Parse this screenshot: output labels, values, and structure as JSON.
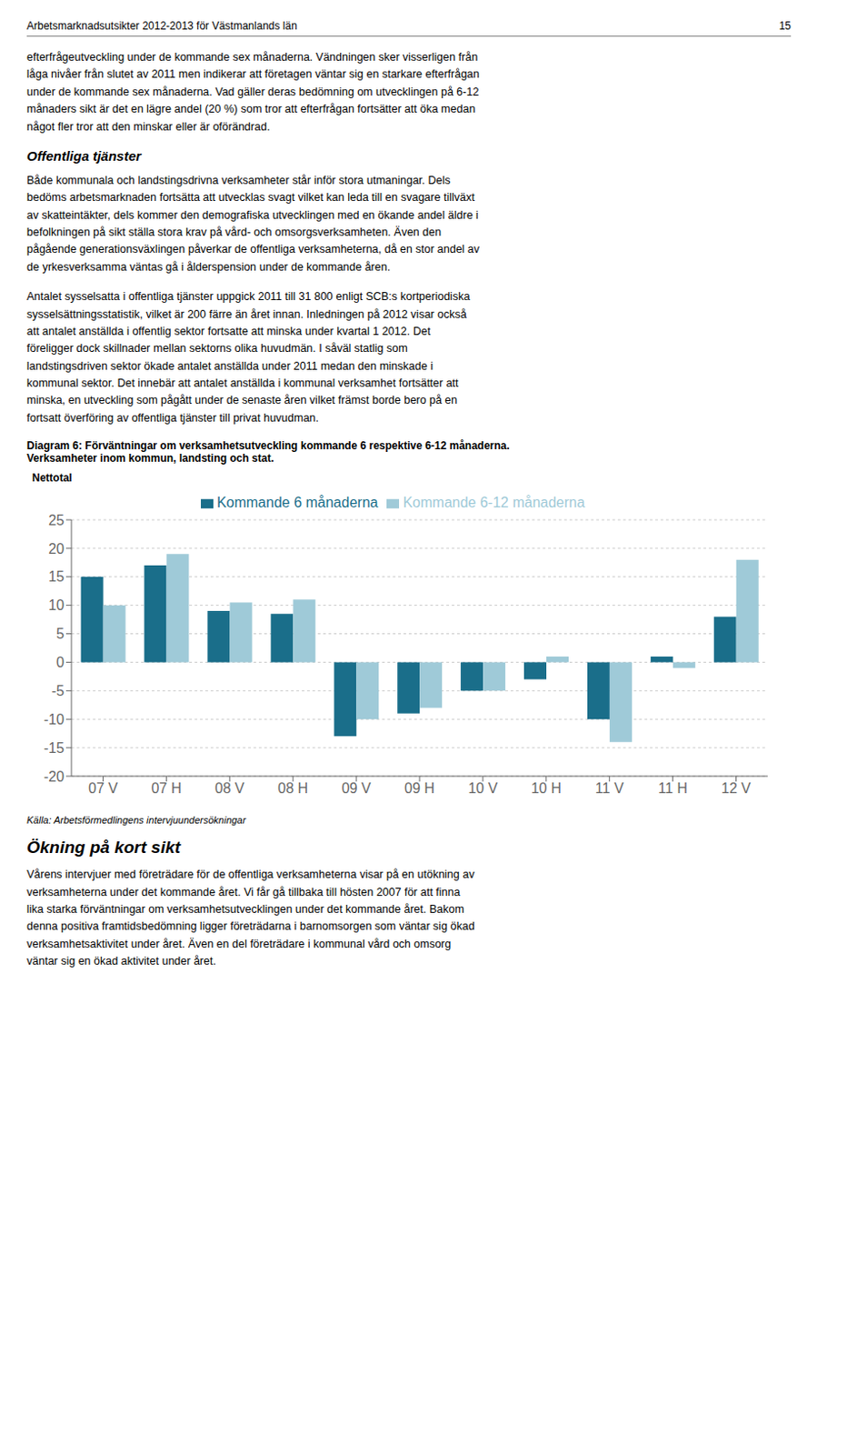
{
  "chart_data": {
    "type": "bar",
    "title": "Diagram 6: Förväntningar om verksamhetsutveckling kommande 6 respektive 6-12 månaderna.",
    "subtitle": "Verksamheter inom kommun, landsting och stat.",
    "ylabel": "Nettotal",
    "categories": [
      "07 V",
      "07 H",
      "08 V",
      "08 H",
      "09 V",
      "09 H",
      "10 V",
      "10 H",
      "11 V",
      "11 H",
      "12 V"
    ],
    "series": [
      {
        "name": "Kommande 6 månaderna",
        "color": "#1a6e8a",
        "values": [
          15,
          17,
          9,
          8.5,
          -13,
          -9,
          -5,
          -3,
          -10,
          1,
          8
        ]
      },
      {
        "name": "Kommande 6-12 månaderna",
        "color": "#9fcad8",
        "values": [
          10,
          19,
          10.5,
          11,
          -10,
          -8,
          -5,
          1,
          -14,
          -1,
          18
        ]
      }
    ],
    "ylim": [
      -20,
      25
    ],
    "yticks": [
      -20,
      -15,
      -10,
      -5,
      0,
      5,
      10,
      15,
      20,
      25
    ],
    "grid": true,
    "legend": "top",
    "annotations": [
      "Arbetsmarknadsutsikter 2012-2013 för Västmanlands län",
      "15",
      "efterfrågeutveckling under de kommande sex månaderna. Vändningen sker visserligen från\nlåga nivåer från slutet av 2011 men indikerar att företagen väntar sig en starkare efterfrågan\nunder de kommande sex månaderna. Vad gäller deras bedömning om utvecklingen på 6-12\nmånaders sikt är det en lägre andel (20 %) som tror att efterfrågan fortsätter att öka medan\nnågot fler tror att den minskar eller är oförändrad.",
      "Offentliga tjänster",
      "Både kommunala och landstingsdrivna verksamheter står inför stora utmaningar. Dels\nbedöms arbetsmarknaden fortsätta att utvecklas svagt vilket kan leda till en svagare tillväxt\nav skatteintäkter, dels kommer den demografiska utvecklingen med en ökande andel äldre i\nbefolkningen på sikt ställa stora krav på vård- och omsorgsverksamheten. Även den\npågående generationsväxlingen påverkar de offentliga verksamheterna, då en stor andel av\nde yrkesverksamma väntas gå i ålderspension under de kommande åren.",
      "Antalet sysselsatta i offentliga tjänster uppgick 2011 till 31 800 enligt SCB:s kortperiodiska\nsysselsättningsstatistik, vilket är 200 färre än året innan. Inledningen på 2012 visar också\natt antalet anställda i offentlig sektor fortsatte att minska under kvartal 1 2012. Det\nföreligger dock skillnader mellan sektorns olika huvudmän. I såväl statlig som\nlandstingsdriven sektor ökade antalet anställda under 2011 medan den minskade i\nkommunal sektor. Det innebär att antalet anställda i kommunal verksamhet fortsätter att\nminska, en utveckling som pågått under de senaste åren vilket främst borde bero på en\nfortsatt överföring av offentliga tjänster till privat huvudman.",
      "Källa: Arbetsförmedlingens intervjuundersökningar",
      "Ökning på kort sikt",
      "Vårens intervjuer med företrädare för de offentliga verksamheterna visar på en utökning av\nverksamheterna under det kommande året. Vi får gå tillbaka till hösten 2007 för att finna\nlika starka förväntningar om verksamhetsutvecklingen under det kommande året. Bakom\ndenna positiva framtidsbedömning ligger företrädarna i barnomsorgen som väntar sig ökad\nverksamhetsaktivitet under året. Även en del företrädare i kommunal vård och omsorg\nväntar sig en ökad aktivitet under året."
    ]
  }
}
